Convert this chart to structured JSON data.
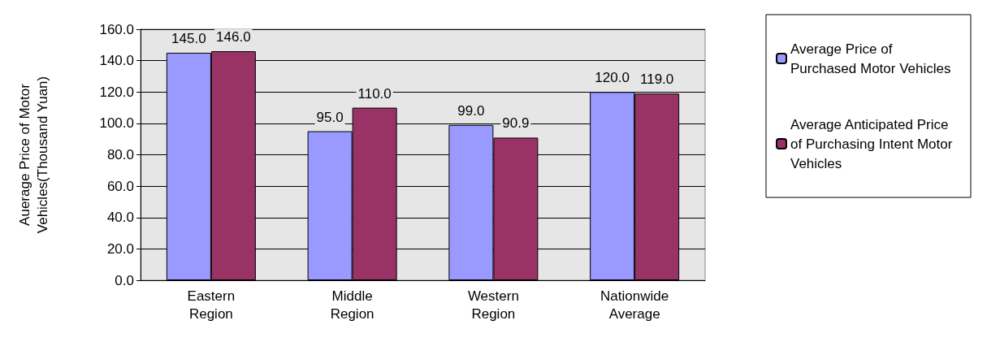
{
  "chart_data": {
    "type": "bar",
    "ylabel": "Auerage Price of Motor Vehicles(Thousand Yuan)",
    "categories": [
      "Eastern Region",
      "Middle Region",
      "Western Region",
      "Nationwide Average"
    ],
    "series": [
      {
        "name": "Average Price of Purchased Motor Vehicles",
        "color": "#9999ff",
        "values": [
          145,
          95,
          99,
          120
        ],
        "value_labels": [
          "145.0",
          "95.0",
          "99.0",
          "120.0"
        ]
      },
      {
        "name": "Average Anticipated Price of Purchasing Intent Motor Vehicles",
        "color": "#993366",
        "values": [
          146,
          110,
          90.9,
          119
        ],
        "value_labels": [
          "146.0",
          "110.0",
          "90.9",
          "119.0"
        ]
      }
    ],
    "ylim": [
      0,
      160
    ],
    "yticks": [
      {
        "value": 0,
        "label": "0.0"
      },
      {
        "value": 20,
        "label": "20.0"
      },
      {
        "value": 40,
        "label": "40.0"
      },
      {
        "value": 60,
        "label": "60.0"
      },
      {
        "value": 80,
        "label": "80.0"
      },
      {
        "value": 100,
        "label": "100.0"
      },
      {
        "value": 120,
        "label": "120.0"
      },
      {
        "value": 140,
        "label": "140.0"
      },
      {
        "value": 160,
        "label": "160.0"
      }
    ],
    "grid": "y",
    "legend": "right"
  }
}
